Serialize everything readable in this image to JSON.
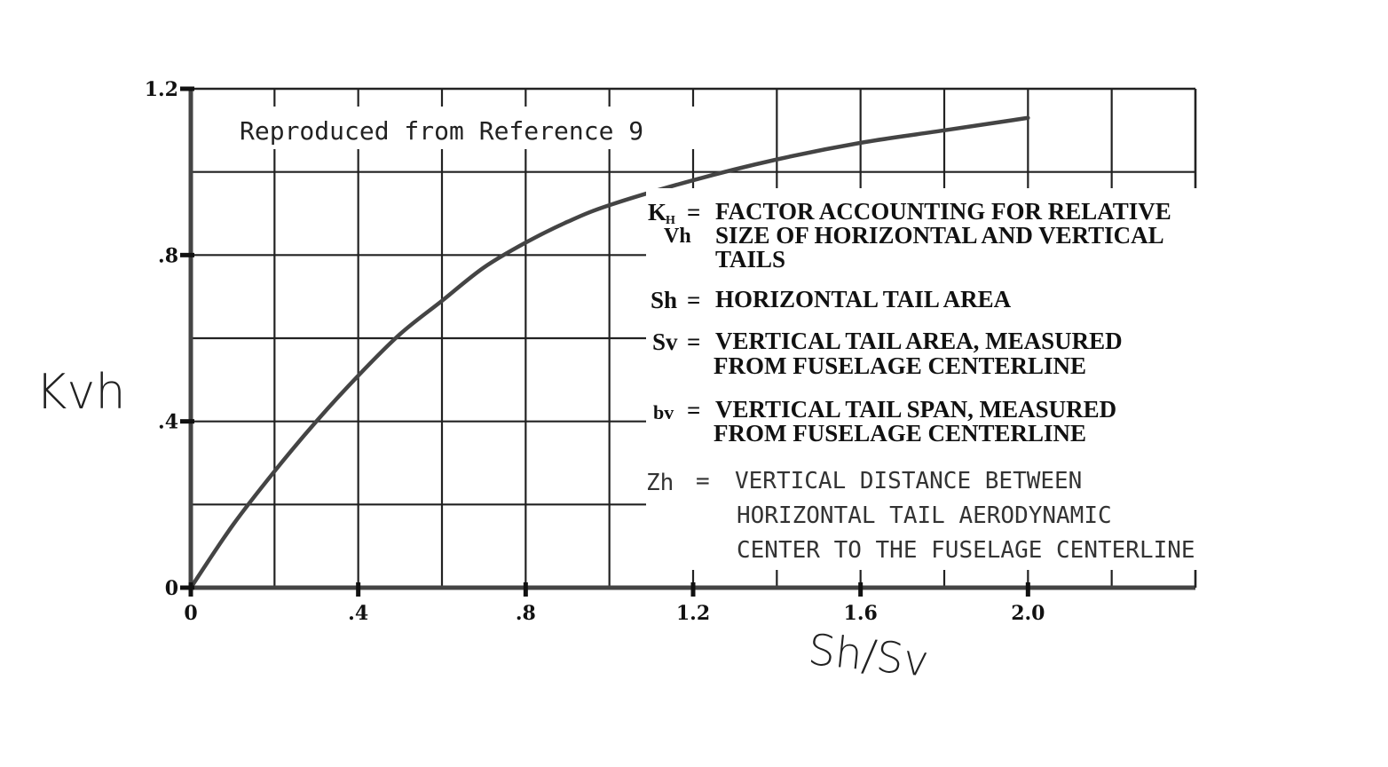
{
  "chart_data": {
    "type": "line",
    "title": "",
    "annotation": "Reproduced from Reference 9",
    "xlabel": "Sh/Sv",
    "ylabel": "Kvh",
    "xlim": [
      0,
      2.4
    ],
    "ylim": [
      0,
      1.2
    ],
    "x_tick_labels": [
      "0",
      ".4",
      ".8",
      "1.2",
      "1.6",
      "2.0"
    ],
    "x_tick_values": [
      0,
      0.4,
      0.8,
      1.2,
      1.6,
      2.0
    ],
    "y_tick_labels": [
      "0",
      ".4",
      ".8",
      "1.2"
    ],
    "y_tick_values": [
      0,
      0.4,
      0.8,
      1.2
    ],
    "grid": true,
    "series": [
      {
        "x": [
          0,
          0.1,
          0.2,
          0.3,
          0.4,
          0.5,
          0.6,
          0.7,
          0.8,
          0.9,
          1.0,
          1.2,
          1.4,
          1.6,
          1.8,
          2.0
        ],
        "y": [
          0,
          0.15,
          0.28,
          0.4,
          0.51,
          0.61,
          0.69,
          0.77,
          0.83,
          0.88,
          0.92,
          0.98,
          1.03,
          1.07,
          1.1,
          1.13
        ]
      }
    ],
    "legend": [
      {
        "symbol": "K",
        "sub": "H",
        "sub2": "Vh",
        "text": [
          "FACTOR ACCOUNTING FOR RELATIVE",
          "SIZE OF HORIZONTAL AND VERTICAL",
          "TAILS"
        ]
      },
      {
        "symbol": "Sh",
        "text": [
          "HORIZONTAL TAIL AREA"
        ]
      },
      {
        "symbol": "Sv",
        "text": [
          "VERTICAL TAIL AREA, MEASURED",
          "FROM FUSELAGE CENTERLINE"
        ]
      },
      {
        "symbol": "bv",
        "text": [
          "VERTICAL TAIL SPAN, MEASURED",
          "FROM FUSELAGE CENTERLINE"
        ]
      },
      {
        "symbol": "Zh",
        "text": [
          "VERTICAL DISTANCE BETWEEN",
          "HORIZONTAL TAIL AERODYNAMIC",
          "CENTER TO THE FUSELAGE CENTERLINE"
        ]
      }
    ]
  }
}
